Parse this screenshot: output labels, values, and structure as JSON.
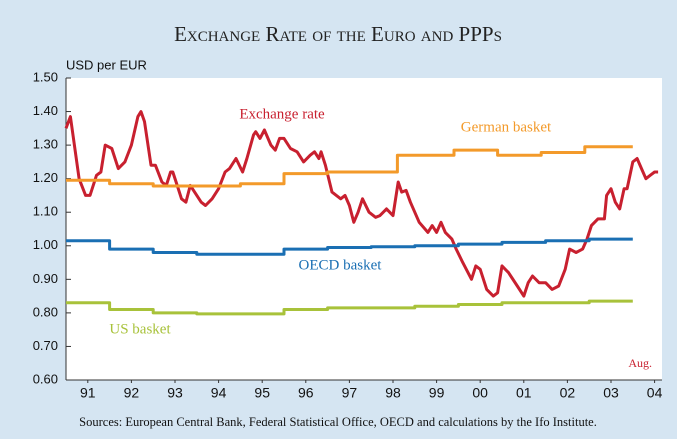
{
  "chart_data": {
    "type": "line",
    "title": "Exchange Rate of the Euro and PPPs",
    "y_label": "USD per EUR",
    "annotation": "Aug.",
    "source": "Sources: European Central Bank, Federal Statistical Office, OECD and calculations by the Ifo Institute.",
    "xlim": [
      1991,
      2004.67
    ],
    "xticks": [
      {
        "value": 1991.5,
        "label": "91"
      },
      {
        "value": 1992.5,
        "label": "92"
      },
      {
        "value": 1993.5,
        "label": "93"
      },
      {
        "value": 1994.5,
        "label": "94"
      },
      {
        "value": 1995.5,
        "label": "95"
      },
      {
        "value": 1996.5,
        "label": "96"
      },
      {
        "value": 1997.5,
        "label": "97"
      },
      {
        "value": 1998.5,
        "label": "98"
      },
      {
        "value": 1999.5,
        "label": "99"
      },
      {
        "value": 2000.5,
        "label": "00"
      },
      {
        "value": 2001.5,
        "label": "01"
      },
      {
        "value": 2002.5,
        "label": "02"
      },
      {
        "value": 2003.5,
        "label": "03"
      },
      {
        "value": 2004.5,
        "label": "04"
      }
    ],
    "ylim": [
      0.6,
      1.5
    ],
    "yticks": [
      {
        "value": 0.6,
        "label": "0.60"
      },
      {
        "value": 0.7,
        "label": "0.70"
      },
      {
        "value": 0.8,
        "label": "0.80"
      },
      {
        "value": 0.9,
        "label": "0.90"
      },
      {
        "value": 1.0,
        "label": "1.00"
      },
      {
        "value": 1.1,
        "label": "1.10"
      },
      {
        "value": 1.2,
        "label": "1.20"
      },
      {
        "value": 1.3,
        "label": "1.30"
      },
      {
        "value": 1.4,
        "label": "1.40"
      },
      {
        "value": 1.5,
        "label": "1.50"
      }
    ],
    "grid": false,
    "series": [
      {
        "name": "Exchange rate",
        "color": "#c8202f",
        "x": [
          1991,
          1991.1,
          1991.3,
          1991.45,
          1991.55,
          1991.7,
          1991.8,
          1991.9,
          1992.05,
          1992.2,
          1992.35,
          1992.5,
          1992.65,
          1992.72,
          1992.8,
          1992.95,
          1993.05,
          1993.2,
          1993.3,
          1993.4,
          1993.45,
          1993.55,
          1993.65,
          1993.75,
          1993.85,
          1993.95,
          1994.1,
          1994.2,
          1994.35,
          1994.5,
          1994.65,
          1994.75,
          1994.9,
          1995.05,
          1995.15,
          1995.3,
          1995.35,
          1995.45,
          1995.55,
          1995.7,
          1995.8,
          1995.9,
          1996,
          1996.15,
          1996.3,
          1996.45,
          1996.6,
          1996.7,
          1996.8,
          1996.85,
          1996.95,
          1997.1,
          1997.3,
          1997.4,
          1997.5,
          1997.6,
          1997.7,
          1997.8,
          1997.95,
          1998.1,
          1998.2,
          1998.35,
          1998.5,
          1998.62,
          1998.7,
          1998.8,
          1998.9,
          1999.1,
          1999.3,
          1999.4,
          1999.5,
          1999.6,
          1999.7,
          1999.85,
          1999.95,
          2000.1,
          2000.3,
          2000.4,
          2000.5,
          2000.65,
          2000.8,
          2000.9,
          2001,
          2001.15,
          2001.35,
          2001.5,
          2001.6,
          2001.7,
          2001.85,
          2002,
          2002.15,
          2002.3,
          2002.45,
          2002.55,
          2002.7,
          2002.85,
          2002.95,
          2003.05,
          2003.2,
          2003.35,
          2003.4,
          2003.5,
          2003.6,
          2003.7,
          2003.8,
          2003.87,
          2004,
          2004.1,
          2004.2,
          2004.3,
          2004.4,
          2004.5,
          2004.58
        ],
        "values": [
          1.35,
          1.385,
          1.2,
          1.15,
          1.15,
          1.21,
          1.22,
          1.3,
          1.29,
          1.23,
          1.25,
          1.3,
          1.385,
          1.4,
          1.37,
          1.24,
          1.24,
          1.19,
          1.18,
          1.22,
          1.22,
          1.18,
          1.14,
          1.13,
          1.18,
          1.16,
          1.13,
          1.12,
          1.14,
          1.17,
          1.22,
          1.23,
          1.26,
          1.22,
          1.26,
          1.33,
          1.34,
          1.32,
          1.345,
          1.3,
          1.285,
          1.32,
          1.32,
          1.29,
          1.28,
          1.25,
          1.27,
          1.28,
          1.26,
          1.28,
          1.24,
          1.16,
          1.14,
          1.15,
          1.12,
          1.07,
          1.1,
          1.14,
          1.1,
          1.085,
          1.09,
          1.11,
          1.09,
          1.19,
          1.16,
          1.165,
          1.13,
          1.07,
          1.04,
          1.06,
          1.04,
          1.07,
          1.04,
          1.02,
          0.99,
          0.95,
          0.9,
          0.94,
          0.93,
          0.87,
          0.85,
          0.86,
          0.94,
          0.92,
          0.88,
          0.85,
          0.89,
          0.91,
          0.89,
          0.89,
          0.87,
          0.88,
          0.93,
          0.99,
          0.98,
          0.99,
          1.02,
          1.06,
          1.08,
          1.08,
          1.15,
          1.17,
          1.13,
          1.11,
          1.17,
          1.17,
          1.25,
          1.26,
          1.23,
          1.2,
          1.21,
          1.22,
          1.22
        ]
      },
      {
        "name": "German basket",
        "color": "#f39a2a",
        "x": [
          1991,
          1992,
          1992,
          1993,
          1993,
          1995,
          1995,
          1996,
          1996,
          1997,
          1997,
          1998.6,
          1998.6,
          1999.9,
          1999.9,
          2000.9,
          2000.9,
          2001.9,
          2001.9,
          2002.9,
          2002.9,
          2004
        ],
        "values": [
          1.195,
          1.195,
          1.185,
          1.185,
          1.178,
          1.178,
          1.185,
          1.185,
          1.215,
          1.215,
          1.22,
          1.22,
          1.27,
          1.27,
          1.285,
          1.285,
          1.27,
          1.27,
          1.278,
          1.278,
          1.295,
          1.295
        ]
      },
      {
        "name": "OECD basket",
        "color": "#1a6fb3",
        "x": [
          1991,
          1992,
          1992,
          1993,
          1993,
          1994,
          1994,
          1996,
          1996,
          1997,
          1997,
          1998,
          1998,
          1999,
          1999,
          2000,
          2000,
          2001,
          2001,
          2002,
          2002,
          2003,
          2003,
          2004
        ],
        "values": [
          1.015,
          1.015,
          0.99,
          0.99,
          0.98,
          0.98,
          0.975,
          0.975,
          0.99,
          0.99,
          0.995,
          0.995,
          0.997,
          0.997,
          1.0,
          1.0,
          1.005,
          1.005,
          1.01,
          1.01,
          1.015,
          1.015,
          1.02,
          1.02
        ]
      },
      {
        "name": "US basket",
        "color": "#a8c23a",
        "x": [
          1991,
          1992,
          1992,
          1993,
          1993,
          1994,
          1994,
          1996,
          1996,
          1997,
          1997,
          1999,
          1999,
          2000,
          2000,
          2001,
          2001,
          2003,
          2003,
          2004
        ],
        "values": [
          0.83,
          0.83,
          0.81,
          0.81,
          0.8,
          0.8,
          0.797,
          0.797,
          0.81,
          0.81,
          0.815,
          0.815,
          0.82,
          0.82,
          0.825,
          0.825,
          0.83,
          0.83,
          0.835,
          0.835
        ]
      }
    ]
  }
}
